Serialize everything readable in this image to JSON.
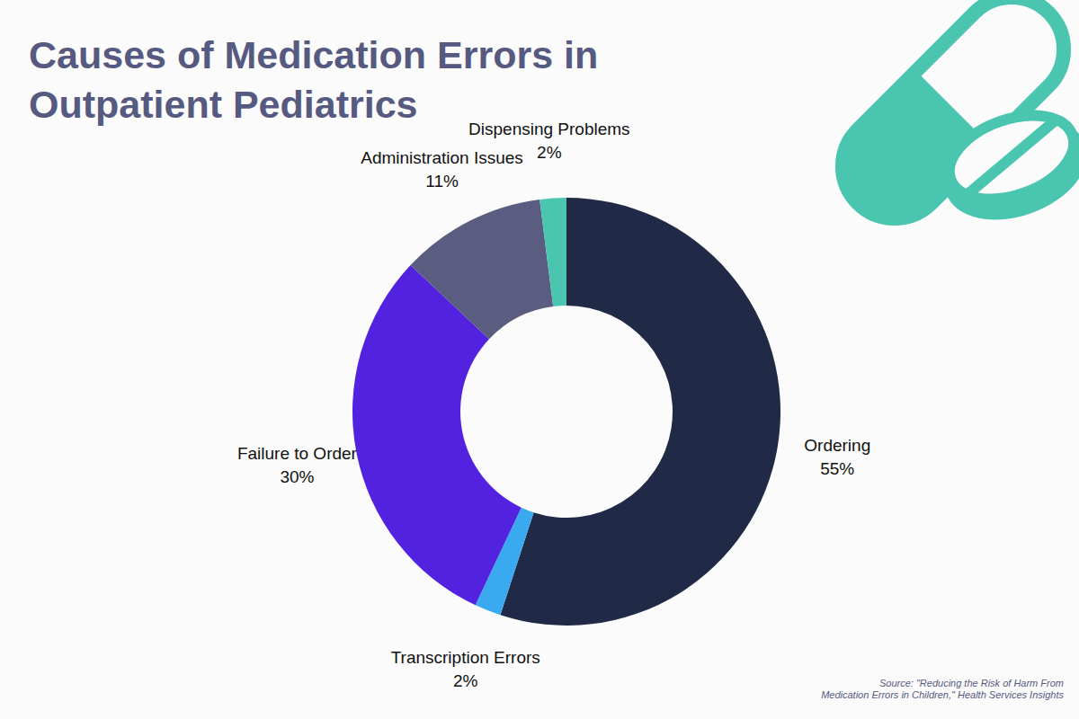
{
  "chart_data": {
    "type": "donut",
    "title": "Causes of Medication Errors in Outpatient Pediatrics",
    "source": [
      "Source:  \"Reducing the Risk of Harm From",
      "Medication Errors in Children,\" Health Services Insights"
    ],
    "categories": [
      "Ordering",
      "Transcription Errors",
      "Failure to Order",
      "Administration Issues",
      "Dispensing Problems"
    ],
    "values": [
      55,
      2,
      30,
      11,
      2
    ],
    "value_labels": [
      "55%",
      "2%",
      "30%",
      "11%",
      "2%"
    ],
    "colors": [
      "#202945",
      "#3aaaf0",
      "#5222e0",
      "#5a5d80",
      "#4ac6b0"
    ],
    "data_labels": true
  }
}
